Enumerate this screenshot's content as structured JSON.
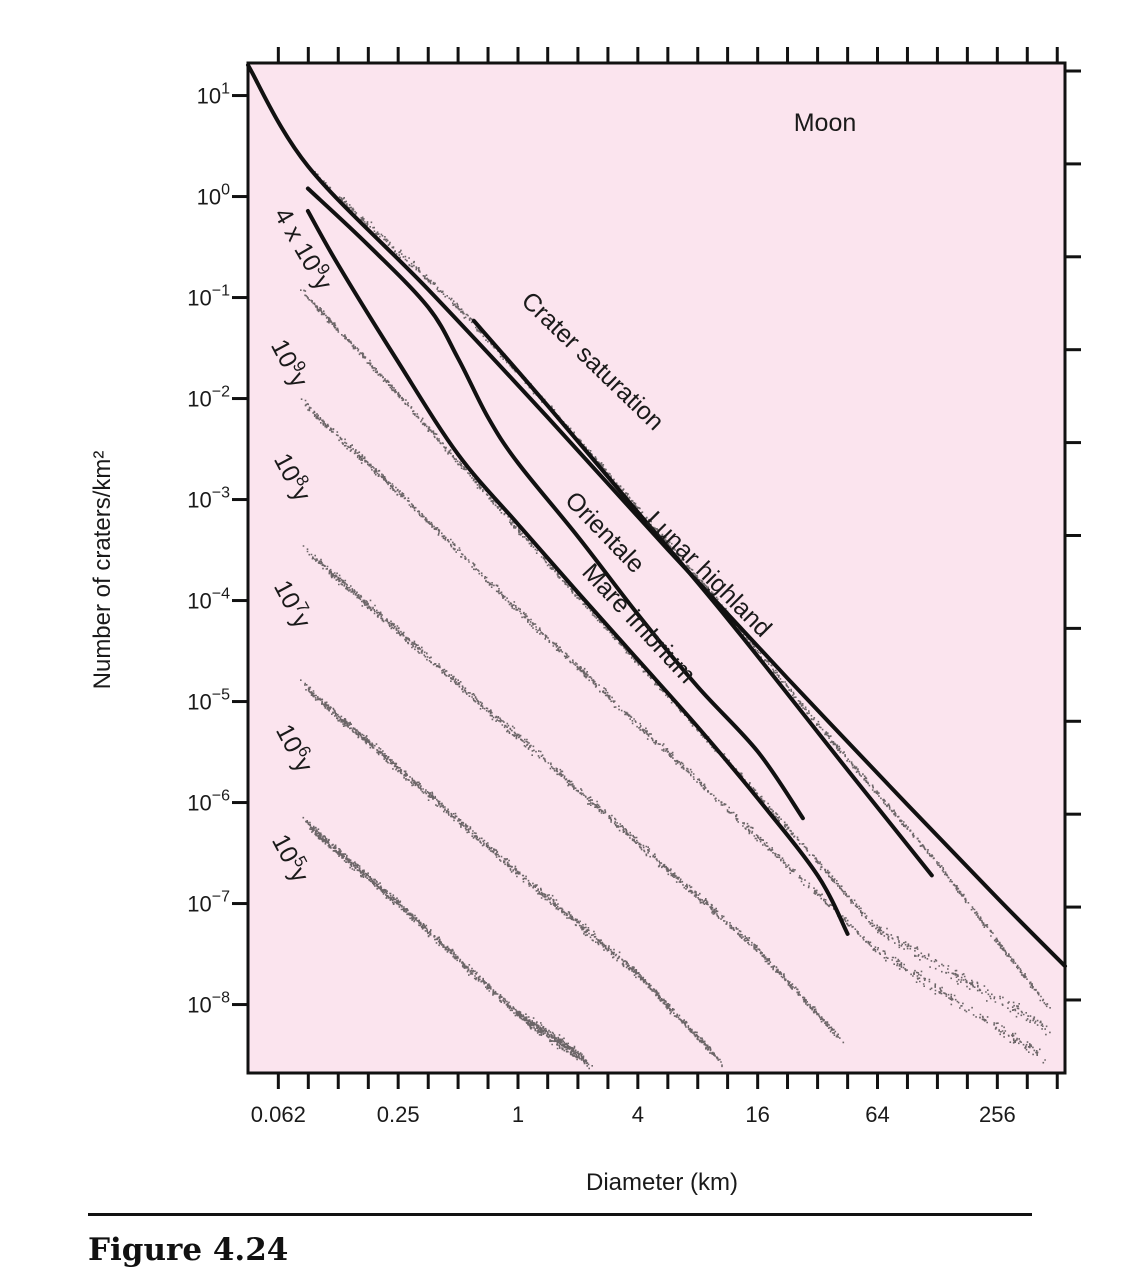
{
  "figure_label": "Figure 4.24",
  "chart_data": {
    "type": "line",
    "title": "",
    "panel_label": "Moon",
    "xlabel": "Diameter (km)",
    "ylabel": "Number of craters/km²",
    "x_scale": "log2",
    "y_scale": "log10",
    "xlim": [
      0.044,
      560
    ],
    "ylim": [
      2.1e-09,
      21
    ],
    "x_ticks": [
      0.0625,
      0.0884,
      0.125,
      0.177,
      0.25,
      0.354,
      0.5,
      0.707,
      1,
      1.41,
      2,
      2.83,
      4,
      5.66,
      8,
      11.3,
      16,
      22.6,
      32,
      45.3,
      64,
      90.5,
      128,
      181,
      256,
      362,
      512
    ],
    "x_tick_labels": [
      {
        "value": 0.0625,
        "label": "0.062"
      },
      {
        "value": 0.25,
        "label": "0.25"
      },
      {
        "value": 1,
        "label": "1"
      },
      {
        "value": 4,
        "label": "4"
      },
      {
        "value": 16,
        "label": "16"
      },
      {
        "value": 64,
        "label": "64"
      },
      {
        "value": 256,
        "label": "256"
      }
    ],
    "y_ticks": [
      {
        "exp": 1,
        "base": "10",
        "sup": "1"
      },
      {
        "exp": 0,
        "base": "10",
        "sup": "0"
      },
      {
        "exp": -1,
        "base": "10",
        "sup": "−1"
      },
      {
        "exp": -2,
        "base": "10",
        "sup": "−2"
      },
      {
        "exp": -3,
        "base": "10",
        "sup": "−3"
      },
      {
        "exp": -4,
        "base": "10",
        "sup": "−4"
      },
      {
        "exp": -5,
        "base": "10",
        "sup": "−5"
      },
      {
        "exp": -6,
        "base": "10",
        "sup": "−6"
      },
      {
        "exp": -7,
        "base": "10",
        "sup": "−7"
      },
      {
        "exp": -8,
        "base": "10",
        "sup": "−8"
      }
    ],
    "background_color": "#fbe4ee",
    "curves": [
      {
        "label": "Crater saturation",
        "points": [
          [
            0.044,
            20
          ],
          [
            0.088,
            2.0
          ],
          [
            0.354,
            0.12
          ],
          [
            1.41,
            0.0065
          ],
          [
            5.66,
            0.00032
          ],
          [
            22.6,
            1.7e-05
          ],
          [
            90.5,
            9.5e-07
          ],
          [
            260,
            1.1e-07
          ],
          [
            560,
            2.4e-08
          ]
        ]
      },
      {
        "label": "Lunar highland",
        "points": [
          [
            0.6,
            0.059
          ],
          [
            1.41,
            0.0085
          ],
          [
            4,
            0.00075
          ],
          [
            11.3,
            6.6e-05
          ],
          [
            45.3,
            2.1e-06
          ],
          [
            120,
            1.9e-07
          ]
        ]
      },
      {
        "label": "Orientale",
        "points": [
          [
            0.088,
            1.2
          ],
          [
            0.177,
            0.33
          ],
          [
            0.354,
            0.08
          ],
          [
            0.5,
            0.025
          ],
          [
            0.707,
            0.0065
          ],
          [
            1,
            0.0023
          ],
          [
            2,
            0.00043
          ],
          [
            4,
            7.3e-05
          ],
          [
            8,
            1.4e-05
          ],
          [
            16,
            3.2e-06
          ],
          [
            27,
            7e-07
          ]
        ]
      },
      {
        "label": "Mare imbrium",
        "points": [
          [
            0.088,
            0.72
          ],
          [
            0.125,
            0.21
          ],
          [
            0.25,
            0.023
          ],
          [
            0.5,
            0.0028
          ],
          [
            1,
            0.00057
          ],
          [
            2,
            0.00012
          ],
          [
            4,
            2.6e-05
          ],
          [
            8,
            5.6e-06
          ],
          [
            16,
            1.1e-06
          ],
          [
            32,
            1.9e-07
          ],
          [
            45.3,
            5e-08
          ]
        ]
      }
    ],
    "isochrons": [
      {
        "label": "4 x 10⁹y",
        "base": "4 x 10",
        "sup": "9",
        "unit": "y",
        "band": [
          [
            0.1,
            1.5
          ],
          [
            0.5,
            0.08
          ],
          [
            2,
            0.004
          ],
          [
            8,
            0.00017
          ],
          [
            32,
            6e-06
          ],
          [
            128,
            2.5e-07
          ],
          [
            450,
            1e-08
          ]
        ]
      },
      {
        "label": "10⁹y",
        "base": "10",
        "sup": "9",
        "unit": "y",
        "band": [
          [
            0.088,
            0.1
          ],
          [
            0.25,
            0.011
          ],
          [
            1,
            0.0005
          ],
          [
            4,
            2.4e-05
          ],
          [
            16,
            1.2e-06
          ],
          [
            64,
            5.5e-08
          ],
          [
            450,
            6e-09
          ]
        ]
      },
      {
        "label": "10⁸y",
        "base": "10",
        "sup": "8",
        "unit": "y",
        "band": [
          [
            0.088,
            0.008
          ],
          [
            0.25,
            0.0012
          ],
          [
            1,
            8e-05
          ],
          [
            4,
            6e-06
          ],
          [
            16,
            4.5e-07
          ],
          [
            64,
            3.4e-08
          ],
          [
            440,
            3e-09
          ]
        ]
      },
      {
        "label": "10⁷y",
        "base": "10",
        "sup": "7",
        "unit": "y",
        "band": [
          [
            0.088,
            0.0003
          ],
          [
            0.25,
            5e-05
          ],
          [
            1,
            4.5e-06
          ],
          [
            4,
            4e-07
          ],
          [
            16,
            3.5e-08
          ],
          [
            40,
            5e-09
          ]
        ]
      },
      {
        "label": "10⁶y",
        "base": "10",
        "sup": "6",
        "unit": "y",
        "band": [
          [
            0.088,
            1.3e-05
          ],
          [
            0.25,
            2.2e-06
          ],
          [
            1,
            2e-07
          ],
          [
            4,
            2e-08
          ],
          [
            10,
            3e-09
          ]
        ]
      },
      {
        "label": "10⁵y",
        "base": "10",
        "sup": "5",
        "unit": "y",
        "band": [
          [
            0.088,
            6e-07
          ],
          [
            0.25,
            1e-07
          ],
          [
            1,
            8e-09
          ],
          [
            2.2,
            2.8e-09
          ]
        ]
      }
    ]
  }
}
